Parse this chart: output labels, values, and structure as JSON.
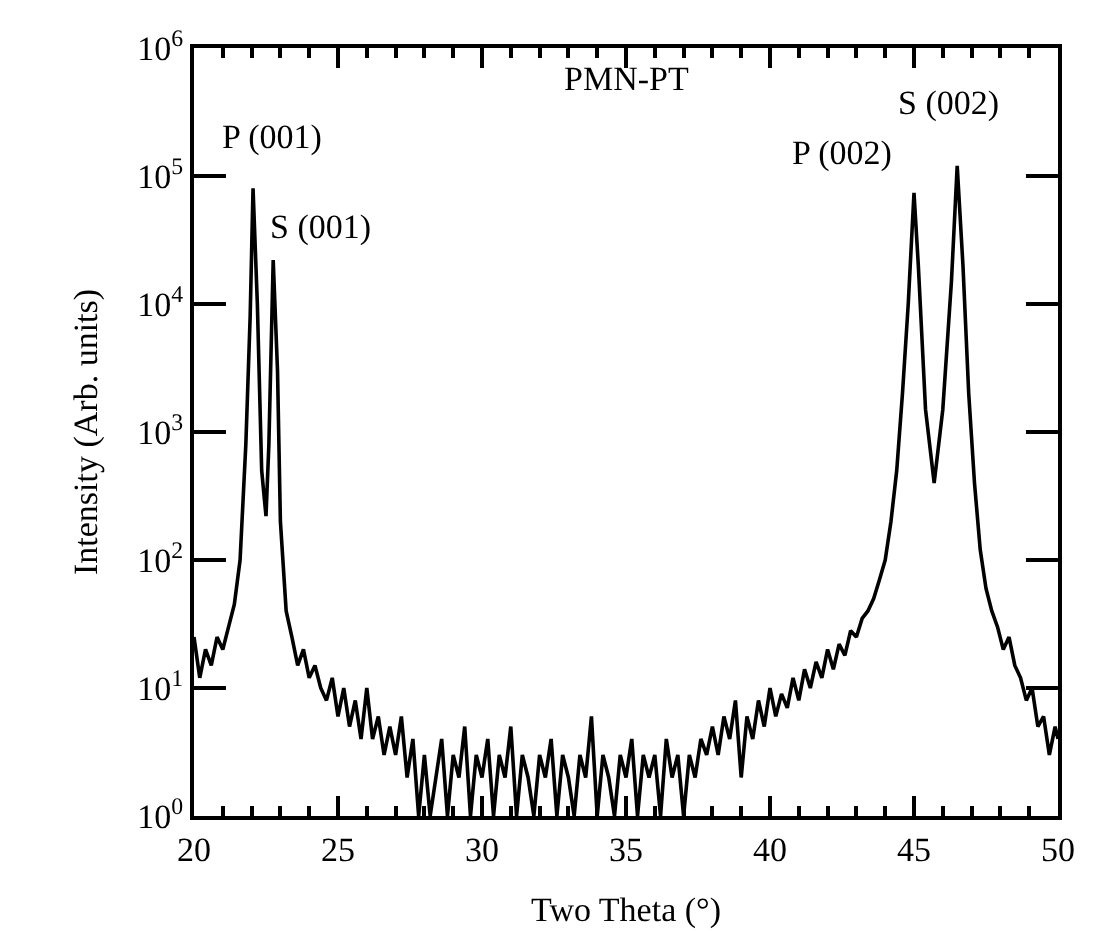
{
  "chart_data": {
    "type": "line",
    "xlabel": "Two Theta (°)",
    "ylabel": "Intensity (Arb. units)",
    "annotations": [
      "PMN-PT",
      {
        "text": "P (001)",
        "x": 22.05,
        "y": 80000
      },
      {
        "text": "S (001)",
        "x": 22.75,
        "y": 22000
      },
      {
        "text": "P (002)",
        "x": 45.0,
        "y": 74000
      },
      {
        "text": "S (002)",
        "x": 46.5,
        "y": 120000
      }
    ],
    "log": "y",
    "marker": "none",
    "line_style": "solid",
    "xlim": [
      20,
      50
    ],
    "xticks": [
      20,
      25,
      30,
      35,
      40,
      45,
      50
    ],
    "ylim": [
      1,
      1000000
    ],
    "yticks": [
      {
        "value": 1,
        "label": "10$^{0}$"
      },
      {
        "value": 10,
        "label": "10$^{1}$"
      },
      {
        "value": 100,
        "label": "10$^{2}$"
      },
      {
        "value": 1000,
        "label": "10$^{3}$"
      },
      {
        "value": 10000,
        "label": "10$^{4}$"
      },
      {
        "value": 100000,
        "label": "10$^{5}$"
      },
      {
        "value": 1000000,
        "label": "10$^{6}$"
      }
    ],
    "series": [
      {
        "color": "#000000",
        "x": [
          20.0,
          20.2,
          20.4,
          20.6,
          20.8,
          21.0,
          21.2,
          21.4,
          21.6,
          21.8,
          21.95,
          22.05,
          22.2,
          22.35,
          22.5,
          22.6,
          22.75,
          22.9,
          23.0,
          23.2,
          23.4,
          23.6,
          23.8,
          24.0,
          24.2,
          24.4,
          24.6,
          24.8,
          25.0,
          25.2,
          25.4,
          25.6,
          25.8,
          26.0,
          26.2,
          26.4,
          26.6,
          26.8,
          27.0,
          27.2,
          27.4,
          27.6,
          27.8,
          28.0,
          28.2,
          28.4,
          28.6,
          28.8,
          29.0,
          29.2,
          29.4,
          29.6,
          29.8,
          30.0,
          30.2,
          30.4,
          30.6,
          30.8,
          31.0,
          31.2,
          31.4,
          31.6,
          31.8,
          32.0,
          32.2,
          32.4,
          32.6,
          32.8,
          33.0,
          33.2,
          33.4,
          33.6,
          33.8,
          34.0,
          34.2,
          34.4,
          34.6,
          34.8,
          35.0,
          35.2,
          35.4,
          35.6,
          35.8,
          36.0,
          36.2,
          36.4,
          36.6,
          36.8,
          37.0,
          37.2,
          37.4,
          37.6,
          37.8,
          38.0,
          38.2,
          38.4,
          38.6,
          38.8,
          39.0,
          39.2,
          39.4,
          39.6,
          39.8,
          40.0,
          40.2,
          40.4,
          40.6,
          40.8,
          41.0,
          41.2,
          41.4,
          41.6,
          41.8,
          42.0,
          42.2,
          42.4,
          42.6,
          42.8,
          43.0,
          43.2,
          43.4,
          43.6,
          43.8,
          44.0,
          44.2,
          44.4,
          44.6,
          44.8,
          45.0,
          45.15,
          45.4,
          45.7,
          46.0,
          46.3,
          46.5,
          46.7,
          46.9,
          47.1,
          47.3,
          47.5,
          47.7,
          47.9,
          48.1,
          48.3,
          48.5,
          48.7,
          48.9,
          49.1,
          49.3,
          49.5,
          49.7,
          49.9,
          50.0
        ],
        "values": [
          25,
          12,
          20,
          15,
          25,
          20,
          30,
          45,
          100,
          800,
          8000,
          80000,
          10000,
          500,
          220,
          800,
          22000,
          3000,
          200,
          40,
          25,
          15,
          20,
          12,
          15,
          10,
          8,
          12,
          6,
          10,
          5,
          8,
          4,
          10,
          4,
          6,
          3,
          5,
          3,
          6,
          2,
          4,
          1,
          3,
          1,
          2,
          4,
          1,
          3,
          2,
          5,
          1,
          3,
          2,
          4,
          1,
          3,
          2,
          5,
          1,
          3,
          2,
          1,
          3,
          2,
          4,
          1,
          3,
          2,
          1,
          3,
          2,
          6,
          1,
          3,
          2,
          1,
          3,
          2,
          4,
          1,
          3,
          2,
          3,
          1,
          4,
          2,
          3,
          1,
          3,
          2,
          4,
          3,
          5,
          3,
          6,
          4,
          8,
          2,
          6,
          4,
          8,
          5,
          10,
          6,
          9,
          7,
          12,
          8,
          14,
          10,
          16,
          12,
          20,
          14,
          22,
          18,
          28,
          25,
          35,
          40,
          50,
          70,
          100,
          200,
          500,
          2000,
          10000,
          74000,
          20000,
          1500,
          400,
          1500,
          15000,
          120000,
          20000,
          2000,
          400,
          120,
          60,
          40,
          30,
          20,
          25,
          15,
          12,
          8,
          10,
          5,
          6,
          3,
          5,
          4
        ]
      }
    ]
  }
}
